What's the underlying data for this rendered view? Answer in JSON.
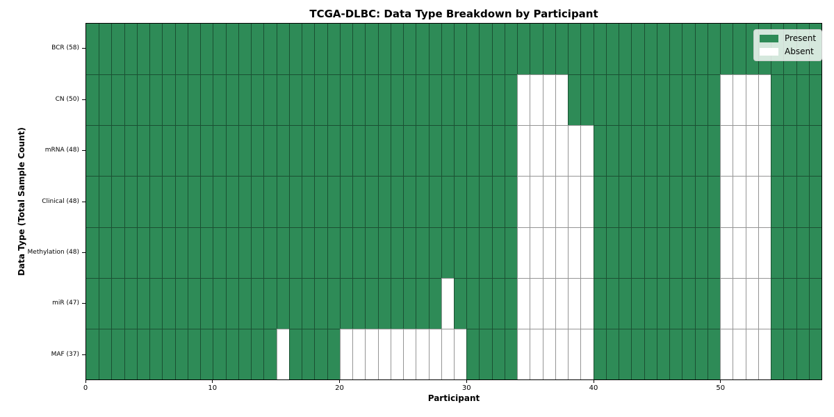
{
  "figure": {
    "title": "TCGA-DLBC: Data Type Breakdown by Participant",
    "xlabel": "Participant",
    "ylabel": "Data Type (Total Sample Count)"
  },
  "legend": {
    "items": [
      {
        "label": "Present",
        "key": "present"
      },
      {
        "label": "Absent",
        "key": "absent"
      }
    ]
  },
  "colors": {
    "present": "#2e8b57",
    "absent": "#ffffff",
    "grid_line": "rgba(0,0,0,0.42)",
    "frame": "#000000",
    "legend_bg": "rgba(255,255,255,0.8)",
    "legend_border": "#cccccc"
  },
  "axes": {
    "x_tick_values": [
      0,
      10,
      20,
      30,
      40,
      50
    ],
    "x_range": [
      0,
      58
    ]
  },
  "chart_data": {
    "type": "heatmap",
    "title": "TCGA-DLBC: Data Type Breakdown by Participant",
    "xlabel": "Participant",
    "ylabel": "Data Type (Total Sample Count)",
    "x_range": [
      0,
      58
    ],
    "n_participants": 58,
    "legend": [
      "Present",
      "Absent"
    ],
    "legend_position": "upper right",
    "grid": true,
    "cell_states": {
      "present": 1,
      "absent": 0
    },
    "rows": [
      {
        "label": "BCR (58)",
        "data_type": "BCR",
        "present_count": 58,
        "absent_participants": []
      },
      {
        "label": "CN (50)",
        "data_type": "CN",
        "present_count": 50,
        "absent_participants": [
          34,
          35,
          36,
          37,
          50,
          51,
          52,
          53
        ]
      },
      {
        "label": "mRNA (48)",
        "data_type": "mRNA",
        "present_count": 48,
        "absent_participants": [
          34,
          35,
          36,
          37,
          38,
          39,
          50,
          51,
          52,
          53
        ]
      },
      {
        "label": "Clinical (48)",
        "data_type": "Clinical",
        "present_count": 48,
        "absent_participants": [
          34,
          35,
          36,
          37,
          38,
          39,
          50,
          51,
          52,
          53
        ]
      },
      {
        "label": "Methylation (48)",
        "data_type": "Methylation",
        "present_count": 48,
        "absent_participants": [
          34,
          35,
          36,
          37,
          38,
          39,
          50,
          51,
          52,
          53
        ]
      },
      {
        "label": "miR (47)",
        "data_type": "miR",
        "present_count": 47,
        "absent_participants": [
          28,
          34,
          35,
          36,
          37,
          38,
          39,
          50,
          51,
          52,
          53
        ]
      },
      {
        "label": "MAF (37)",
        "data_type": "MAF",
        "present_count": 37,
        "absent_participants": [
          15,
          20,
          21,
          22,
          23,
          24,
          25,
          26,
          27,
          28,
          29,
          34,
          35,
          36,
          37,
          38,
          39,
          50,
          51,
          52,
          53
        ]
      }
    ]
  }
}
